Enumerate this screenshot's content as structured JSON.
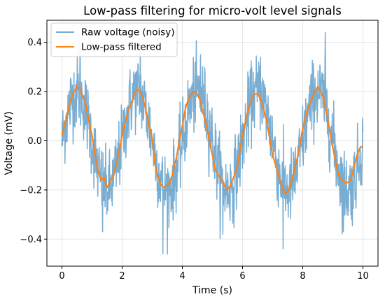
{
  "chart_data": {
    "type": "line",
    "title": "Low-pass filtering for micro-volt level signals",
    "xlabel": "Time (s)",
    "ylabel": "Voltage (mV)",
    "xlim": [
      -0.5,
      10.5
    ],
    "ylim": [
      -0.51,
      0.49
    ],
    "xticks": [
      0,
      2,
      4,
      6,
      8,
      10
    ],
    "yticks": [
      -0.4,
      -0.2,
      0.0,
      0.2,
      0.4
    ],
    "xtick_labels": [
      "0",
      "2",
      "4",
      "6",
      "8",
      "10"
    ],
    "ytick_labels": [
      "−0.4",
      "−0.2",
      "0.0",
      "0.2",
      "0.4"
    ],
    "grid": true,
    "legend_position": "top-left",
    "series": [
      {
        "name": "Raw voltage (noisy)",
        "color": "#1f77b4",
        "alpha": 0.6,
        "signal": {
          "form": "sine",
          "amplitude": 0.2,
          "period": 2.0,
          "noise_sd": 0.075
        },
        "x": [
          0,
          10
        ],
        "samples": 1000,
        "peaks": [
          0.38,
          0.37,
          0.35,
          0.34,
          0.44
        ],
        "troughs": [
          -0.37,
          -0.46,
          -0.38,
          -0.44,
          -0.37
        ]
      },
      {
        "name": "Low-pass filtered",
        "color": "#ff7f0e",
        "x": [
          0.0,
          0.1,
          0.2,
          0.3,
          0.4,
          0.5,
          0.6,
          0.7,
          0.8,
          0.9,
          1.0,
          1.1,
          1.2,
          1.3,
          1.4,
          1.5,
          1.6,
          1.7,
          1.8,
          1.9,
          2.0,
          2.1,
          2.2,
          2.3,
          2.4,
          2.5,
          2.6,
          2.7,
          2.8,
          2.9,
          3.0,
          3.1,
          3.2,
          3.3,
          3.4,
          3.5,
          3.6,
          3.7,
          3.8,
          3.9,
          4.0,
          4.1,
          4.2,
          4.3,
          4.4,
          4.5,
          4.6,
          4.7,
          4.8,
          4.9,
          5.0,
          5.1,
          5.2,
          5.3,
          5.4,
          5.5,
          5.6,
          5.7,
          5.8,
          5.9,
          6.0,
          6.1,
          6.2,
          6.3,
          6.4,
          6.5,
          6.6,
          6.7,
          6.8,
          6.9,
          7.0,
          7.1,
          7.2,
          7.3,
          7.4,
          7.5,
          7.6,
          7.7,
          7.8,
          7.9,
          8.0,
          8.1,
          8.2,
          8.3,
          8.4,
          8.5,
          8.6,
          8.7,
          8.8,
          8.9,
          9.0,
          9.1,
          9.2,
          9.3,
          9.4,
          9.5,
          9.6,
          9.7,
          9.8,
          9.9,
          10.0
        ],
        "y": [
          0.02,
          0.07,
          0.12,
          0.17,
          0.2,
          0.22,
          0.21,
          0.18,
          0.14,
          0.08,
          0.02,
          -0.06,
          -0.12,
          -0.16,
          -0.15,
          -0.19,
          -0.17,
          -0.14,
          -0.1,
          -0.04,
          0.02,
          0.07,
          0.12,
          0.15,
          0.19,
          0.21,
          0.2,
          0.17,
          0.12,
          0.06,
          0.01,
          -0.1,
          -0.15,
          -0.18,
          -0.19,
          -0.18,
          -0.17,
          -0.12,
          -0.07,
          0.0,
          0.06,
          0.13,
          0.17,
          0.19,
          0.2,
          0.19,
          0.16,
          0.11,
          0.06,
          0.0,
          -0.06,
          -0.12,
          -0.14,
          -0.16,
          -0.18,
          -0.2,
          -0.18,
          -0.15,
          -0.12,
          -0.05,
          0.02,
          0.08,
          0.13,
          0.17,
          0.19,
          0.19,
          0.17,
          0.13,
          0.08,
          0.01,
          -0.06,
          -0.1,
          -0.14,
          -0.18,
          -0.21,
          -0.21,
          -0.18,
          -0.13,
          -0.08,
          -0.02,
          0.05,
          0.1,
          0.14,
          0.17,
          0.2,
          0.22,
          0.2,
          0.17,
          0.11,
          0.04,
          -0.03,
          -0.09,
          -0.14,
          -0.16,
          -0.17,
          -0.17,
          -0.16,
          -0.11,
          -0.06,
          -0.03,
          -0.02
        ]
      }
    ]
  }
}
